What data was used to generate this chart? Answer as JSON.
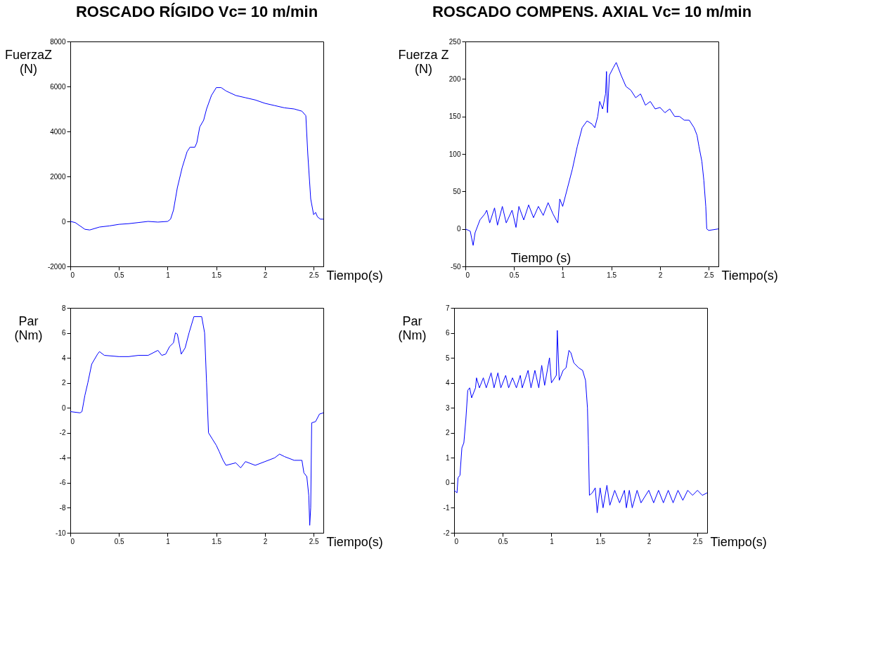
{
  "chart_data": [
    {
      "type": "line",
      "title": "ROSCADO RÍGIDO Vc= 10 m/min",
      "xlabel": "Tiempo(s)",
      "ylabel": "FuerzaZ (N)",
      "xlim": [
        0,
        2.6
      ],
      "xticks": [
        0,
        0.5,
        1,
        1.5,
        2,
        2.5
      ],
      "ylim": [
        -2000,
        8000
      ],
      "yticks": [
        -2000,
        0,
        2000,
        4000,
        6000,
        8000
      ],
      "grid": false,
      "legend": false,
      "x": [
        0,
        0.05,
        0.1,
        0.15,
        0.2,
        0.3,
        0.4,
        0.5,
        0.6,
        0.7,
        0.8,
        0.9,
        1.0,
        1.03,
        1.06,
        1.1,
        1.15,
        1.2,
        1.23,
        1.28,
        1.3,
        1.33,
        1.37,
        1.4,
        1.45,
        1.5,
        1.55,
        1.6,
        1.7,
        1.8,
        1.9,
        2.0,
        2.1,
        2.2,
        2.3,
        2.38,
        2.42,
        2.44,
        2.47,
        2.5,
        2.52,
        2.54,
        2.57,
        2.6
      ],
      "series": [
        {
          "color": "#0000ff",
          "values": [
            0,
            -50,
            -200,
            -350,
            -380,
            -250,
            -200,
            -130,
            -100,
            -50,
            0,
            -30,
            0,
            100,
            500,
            1500,
            2400,
            3100,
            3300,
            3300,
            3500,
            4200,
            4500,
            5000,
            5600,
            5950,
            5950,
            5800,
            5600,
            5500,
            5400,
            5250,
            5150,
            5050,
            5000,
            4900,
            4700,
            3000,
            1000,
            300,
            400,
            200,
            100,
            100
          ]
        }
      ]
    },
    {
      "type": "line",
      "title": "ROSCADO COMPENS. AXIAL Vc= 10 m/min",
      "xlabel": "Tiempo(s)",
      "ylabel": "Fuerza Z (N)",
      "annotations": [
        "Tiempo (s)"
      ],
      "xlim": [
        0,
        2.6
      ],
      "xticks": [
        0,
        0.5,
        1,
        1.5,
        2,
        2.5
      ],
      "ylim": [
        -50,
        250
      ],
      "yticks": [
        -50,
        0,
        50,
        100,
        150,
        200,
        250
      ],
      "grid": false,
      "legend": false,
      "x": [
        0,
        0.05,
        0.08,
        0.1,
        0.15,
        0.2,
        0.22,
        0.25,
        0.3,
        0.33,
        0.38,
        0.42,
        0.48,
        0.52,
        0.55,
        0.6,
        0.65,
        0.7,
        0.75,
        0.8,
        0.85,
        0.9,
        0.95,
        0.97,
        1.0,
        1.05,
        1.1,
        1.15,
        1.2,
        1.25,
        1.3,
        1.33,
        1.36,
        1.38,
        1.41,
        1.44,
        1.45,
        1.46,
        1.48,
        1.52,
        1.55,
        1.6,
        1.65,
        1.7,
        1.75,
        1.8,
        1.85,
        1.9,
        1.95,
        2.0,
        2.05,
        2.1,
        2.15,
        2.2,
        2.25,
        2.3,
        2.35,
        2.38,
        2.4,
        2.43,
        2.45,
        2.47,
        2.48,
        2.5,
        2.6
      ],
      "series": [
        {
          "color": "#0000ff",
          "values": [
            0,
            -3,
            -22,
            -5,
            12,
            20,
            25,
            8,
            28,
            5,
            30,
            8,
            25,
            2,
            30,
            12,
            32,
            15,
            30,
            18,
            35,
            20,
            8,
            40,
            30,
            55,
            80,
            110,
            135,
            144,
            140,
            135,
            150,
            170,
            160,
            180,
            210,
            155,
            205,
            215,
            222,
            205,
            190,
            185,
            175,
            180,
            165,
            170,
            160,
            162,
            155,
            160,
            150,
            150,
            145,
            145,
            135,
            125,
            110,
            90,
            65,
            30,
            0,
            -2,
            0
          ]
        }
      ]
    },
    {
      "type": "line",
      "xlabel": "Tiempo(s)",
      "ylabel": "Par (Nm)",
      "xlim": [
        0,
        2.6
      ],
      "xticks": [
        0,
        0.5,
        1,
        1.5,
        2,
        2.5
      ],
      "ylim": [
        -10,
        8
      ],
      "yticks": [
        -10,
        -8,
        -6,
        -4,
        -2,
        0,
        2,
        4,
        6,
        8
      ],
      "grid": false,
      "legend": false,
      "x": [
        0,
        0.1,
        0.12,
        0.15,
        0.18,
        0.22,
        0.28,
        0.3,
        0.35,
        0.5,
        0.6,
        0.7,
        0.8,
        0.9,
        0.94,
        0.98,
        1.02,
        1.06,
        1.08,
        1.1,
        1.14,
        1.18,
        1.22,
        1.27,
        1.35,
        1.38,
        1.4,
        1.42,
        1.46,
        1.5,
        1.53,
        1.57,
        1.6,
        1.7,
        1.75,
        1.8,
        1.9,
        2.0,
        2.1,
        2.15,
        2.2,
        2.3,
        2.38,
        2.4,
        2.43,
        2.45,
        2.46,
        2.47,
        2.48,
        2.52,
        2.56,
        2.6
      ],
      "series": [
        {
          "color": "#0000ff",
          "values": [
            -0.3,
            -0.4,
            -0.3,
            1.0,
            2.0,
            3.5,
            4.3,
            4.5,
            4.2,
            4.1,
            4.1,
            4.2,
            4.2,
            4.6,
            4.2,
            4.3,
            4.9,
            5.2,
            6.0,
            5.9,
            4.3,
            4.8,
            6.0,
            7.3,
            7.3,
            6.0,
            2.0,
            -2.0,
            -2.5,
            -3.0,
            -3.5,
            -4.2,
            -4.6,
            -4.4,
            -4.8,
            -4.3,
            -4.6,
            -4.3,
            -4.0,
            -3.7,
            -3.9,
            -4.2,
            -4.2,
            -5.2,
            -5.5,
            -7.0,
            -9.4,
            -8.0,
            -1.2,
            -1.1,
            -0.5,
            -0.4
          ]
        }
      ]
    },
    {
      "type": "line",
      "xlabel": "Tiempo(s)",
      "ylabel": "Par (Nm)",
      "xlim": [
        0,
        2.6
      ],
      "xticks": [
        0,
        0.5,
        1,
        1.5,
        2,
        2.5
      ],
      "ylim": [
        -2,
        7
      ],
      "yticks": [
        -2,
        -1,
        0,
        1,
        2,
        3,
        4,
        5,
        6,
        7
      ],
      "grid": false,
      "legend": false,
      "x": [
        0,
        0.03,
        0.04,
        0.06,
        0.08,
        0.1,
        0.12,
        0.14,
        0.16,
        0.18,
        0.22,
        0.23,
        0.26,
        0.3,
        0.33,
        0.38,
        0.41,
        0.45,
        0.48,
        0.53,
        0.56,
        0.6,
        0.64,
        0.68,
        0.7,
        0.76,
        0.79,
        0.83,
        0.87,
        0.9,
        0.93,
        0.98,
        1.0,
        1.05,
        1.06,
        1.08,
        1.12,
        1.15,
        1.18,
        1.2,
        1.23,
        1.28,
        1.32,
        1.35,
        1.37,
        1.38,
        1.39,
        1.42,
        1.45,
        1.47,
        1.5,
        1.53,
        1.57,
        1.6,
        1.65,
        1.7,
        1.75,
        1.77,
        1.8,
        1.83,
        1.88,
        1.92,
        2.0,
        2.05,
        2.1,
        2.15,
        2.2,
        2.25,
        2.3,
        2.35,
        2.4,
        2.45,
        2.5,
        2.55,
        2.6
      ],
      "series": [
        {
          "color": "#0000ff",
          "values": [
            -0.3,
            -0.4,
            0.2,
            0.3,
            1.4,
            1.6,
            2.5,
            3.7,
            3.8,
            3.4,
            3.8,
            4.2,
            3.8,
            4.2,
            3.8,
            4.4,
            3.8,
            4.4,
            3.8,
            4.3,
            3.8,
            4.2,
            3.8,
            4.3,
            3.8,
            4.5,
            3.8,
            4.5,
            3.8,
            4.7,
            3.9,
            5.0,
            4.0,
            4.3,
            6.1,
            4.1,
            4.5,
            4.6,
            5.3,
            5.2,
            4.8,
            4.6,
            4.5,
            4.1,
            3.0,
            1.5,
            -0.5,
            -0.4,
            -0.2,
            -1.2,
            -0.2,
            -1.0,
            -0.1,
            -0.9,
            -0.3,
            -0.8,
            -0.3,
            -1.0,
            -0.3,
            -1.0,
            -0.3,
            -0.8,
            -0.3,
            -0.8,
            -0.3,
            -0.8,
            -0.3,
            -0.8,
            -0.3,
            -0.7,
            -0.3,
            -0.5,
            -0.3,
            -0.5,
            -0.4
          ]
        }
      ]
    }
  ]
}
